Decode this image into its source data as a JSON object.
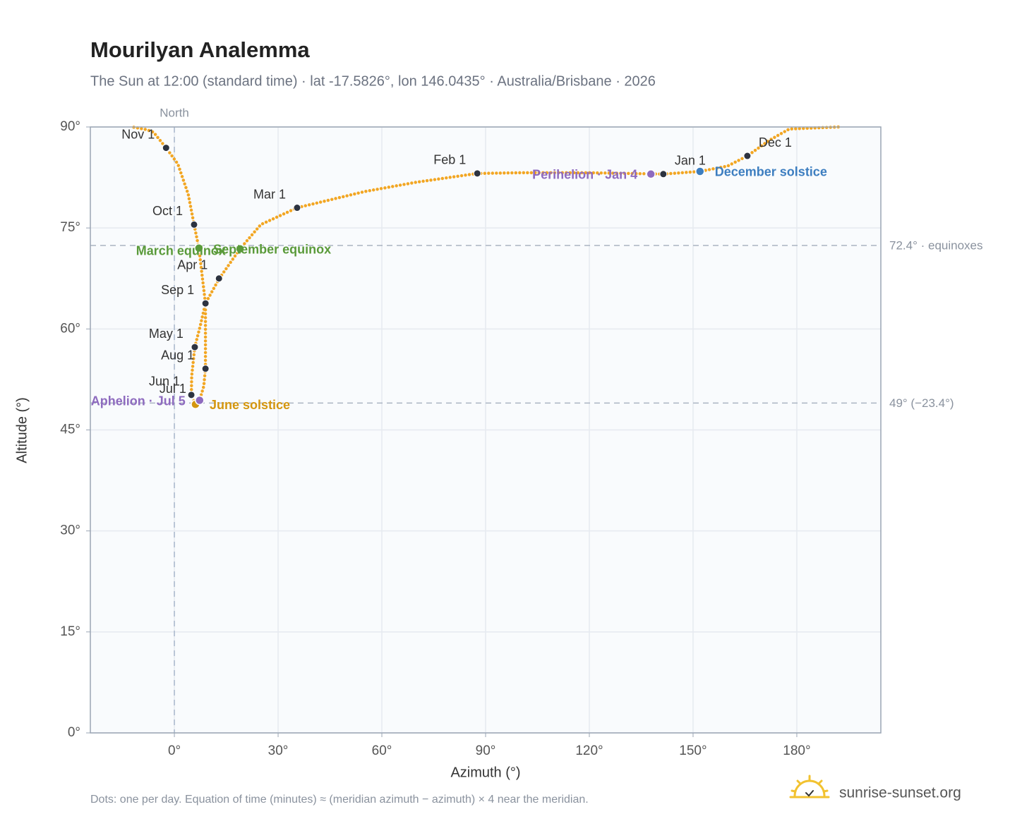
{
  "chart_data": {
    "type": "analemma",
    "title": "Mourilyan Analemma",
    "subtitle": "The Sun at 12:00 (standard time) · lat -17.5826°, lon 146.0435° · Australia/Brisbane · 2026",
    "x_label": "Azimuth (°)",
    "y_label": "Altitude (°)",
    "xlim": [
      -24.3,
      204.3
    ],
    "ylim": [
      0,
      90
    ],
    "xticks": [
      {
        "value": 0,
        "label": "0°"
      },
      {
        "value": 30,
        "label": "30°"
      },
      {
        "value": 60,
        "label": "60°"
      },
      {
        "value": 90,
        "label": "90°"
      },
      {
        "value": 120,
        "label": "120°"
      },
      {
        "value": 150,
        "label": "150°"
      },
      {
        "value": 180,
        "label": "180°"
      }
    ],
    "yticks": [
      {
        "value": 0,
        "label": "0°"
      },
      {
        "value": 15,
        "label": "15°"
      },
      {
        "value": 30,
        "label": "30°"
      },
      {
        "value": 45,
        "label": "45°"
      },
      {
        "value": 60,
        "label": "60°"
      },
      {
        "value": 75,
        "label": "75°"
      },
      {
        "value": 90,
        "label": "90°"
      }
    ],
    "grid": true,
    "path": {
      "color": "#f2a623",
      "x": [
        141.4,
        120,
        100,
        87.6,
        70,
        55,
        35.5,
        25,
        19,
        13,
        9,
        7.5,
        5.9,
        5,
        4.9,
        6.1,
        7.3,
        8.5,
        9.0,
        9.0,
        9.0,
        8,
        7.1,
        5.7,
        4,
        1,
        -2.4,
        -6,
        -8,
        -12.2,
        null,
        192,
        177.8,
        172,
        165.7,
        160,
        152,
        141.4
      ],
      "y": [
        83.0,
        83.2,
        83.2,
        83.1,
        81.8,
        80.4,
        78.0,
        75.5,
        71.9,
        67.5,
        63.8,
        60.5,
        57.3,
        53,
        50.2,
        48.8,
        49.4,
        51.5,
        54.1,
        58,
        63.8,
        68,
        72.0,
        75.5,
        80,
        84.5,
        86.9,
        89.2,
        89.6,
        90,
        null,
        90,
        89.7,
        88,
        85.7,
        84.2,
        83.4,
        83.0
      ]
    },
    "months": {
      "color": "#2d3340",
      "labels": [
        "Jan 1",
        "Feb 1",
        "Mar 1",
        "Apr 1",
        "May 1",
        "Jun 1",
        "Jul 1",
        "Aug 1",
        "Sep 1",
        "Oct 1",
        "Nov 1",
        "Dec 1"
      ],
      "x": [
        141.4,
        87.6,
        35.5,
        12.9,
        5.9,
        4.9,
        6.7,
        9.0,
        9.0,
        5.7,
        -2.4,
        165.7
      ],
      "y": [
        83.0,
        83.1,
        78.0,
        67.5,
        57.3,
        50.2,
        49.1,
        54.1,
        63.8,
        75.5,
        86.9,
        85.7
      ]
    },
    "events": [
      {
        "label": "March equinox",
        "x": 7.1,
        "y": 72.0,
        "color": "#5a9a3a"
      },
      {
        "label": "September equinox",
        "x": 19.0,
        "y": 71.9,
        "color": "#5a9a3a"
      },
      {
        "label": "June solstice",
        "x": 6.1,
        "y": 48.8,
        "color": "#d4960f"
      },
      {
        "label": "Aphelion · Jul 5",
        "x": 7.3,
        "y": 49.4,
        "color": "#8e6bbf"
      },
      {
        "label": "Perihelion · Jan 4",
        "x": 137.8,
        "y": 83.0,
        "color": "#8e6bbf"
      },
      {
        "label": "December solstice",
        "x": 152.0,
        "y": 83.4,
        "color": "#3d7ec0"
      }
    ],
    "reference_lines": [
      {
        "value": 72.4,
        "label": "72.4° · equinoxes"
      },
      {
        "value": 49,
        "label": "49° (−23.4°)"
      }
    ],
    "north_line": {
      "value": 0,
      "label": "North"
    },
    "footnote": "Dots: one per day. Equation of time (minutes) ≈ (meridian azimuth − azimuth) × 4 near the meridian.",
    "brand": "sunrise-sunset.org"
  }
}
